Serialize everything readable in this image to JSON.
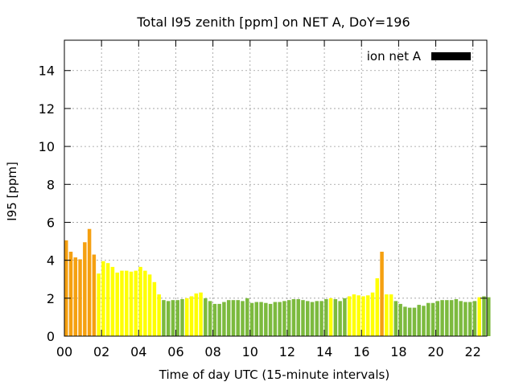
{
  "chart_data": {
    "type": "bar",
    "title": "Total I95 zenith [ppm] on NET A, DoY=196",
    "xlabel": "Time of day UTC (15-minute intervals)",
    "ylabel": "I95 [ppm]",
    "ylim": [
      0,
      15.6
    ],
    "xlim": [
      0,
      22.75
    ],
    "interval_hours": 0.25,
    "yticks": [
      "0",
      "2",
      "4",
      "6",
      "8",
      "10",
      "12",
      "14"
    ],
    "xticks": [
      "00",
      "02",
      "04",
      "06",
      "08",
      "10",
      "12",
      "14",
      "16",
      "18",
      "20",
      "22"
    ],
    "grid": true,
    "legend": {
      "label": "ion net A",
      "color": "#000000",
      "position": "top-right"
    },
    "color_scale": {
      "green": "#7cba3e",
      "yellow": "#ffff00",
      "orange": "#f5a010"
    },
    "values": [
      5.05,
      4.45,
      4.15,
      4.05,
      4.95,
      5.65,
      4.3,
      3.3,
      3.95,
      3.85,
      3.65,
      3.35,
      3.45,
      3.45,
      3.4,
      3.45,
      3.65,
      3.45,
      3.25,
      2.85,
      2.2,
      1.9,
      1.85,
      1.9,
      1.9,
      1.95,
      2.0,
      2.1,
      2.25,
      2.3,
      2.0,
      1.85,
      1.7,
      1.7,
      1.8,
      1.9,
      1.9,
      1.9,
      1.85,
      2.0,
      1.75,
      1.8,
      1.8,
      1.75,
      1.7,
      1.8,
      1.8,
      1.85,
      1.9,
      1.95,
      1.95,
      1.9,
      1.85,
      1.8,
      1.85,
      1.85,
      1.95,
      2.0,
      1.95,
      1.85,
      2.0,
      2.1,
      2.2,
      2.15,
      2.1,
      2.15,
      2.3,
      3.05,
      4.45,
      2.2,
      2.2,
      1.85,
      1.7,
      1.55,
      1.5,
      1.5,
      1.65,
      1.6,
      1.75,
      1.75,
      1.85,
      1.9,
      1.9,
      1.9,
      1.95,
      1.85,
      1.8,
      1.8,
      1.85,
      2.05,
      2.1,
      2.05
    ],
    "colors": [
      "orange",
      "orange",
      "orange",
      "orange",
      "orange",
      "orange",
      "orange",
      "yellow",
      "yellow",
      "yellow",
      "yellow",
      "yellow",
      "yellow",
      "yellow",
      "yellow",
      "yellow",
      "yellow",
      "yellow",
      "yellow",
      "yellow",
      "yellow",
      "green",
      "green",
      "green",
      "green",
      "green",
      "yellow",
      "yellow",
      "yellow",
      "yellow",
      "green",
      "green",
      "green",
      "green",
      "green",
      "green",
      "green",
      "green",
      "green",
      "green",
      "green",
      "green",
      "green",
      "green",
      "green",
      "green",
      "green",
      "green",
      "green",
      "green",
      "green",
      "green",
      "green",
      "green",
      "green",
      "green",
      "green",
      "yellow",
      "green",
      "green",
      "green",
      "yellow",
      "yellow",
      "yellow",
      "yellow",
      "yellow",
      "yellow",
      "yellow",
      "orange",
      "yellow",
      "yellow",
      "green",
      "green",
      "green",
      "green",
      "green",
      "green",
      "green",
      "green",
      "green",
      "green",
      "green",
      "green",
      "green",
      "green",
      "green",
      "green",
      "green",
      "green",
      "yellow",
      "green",
      "green"
    ]
  }
}
